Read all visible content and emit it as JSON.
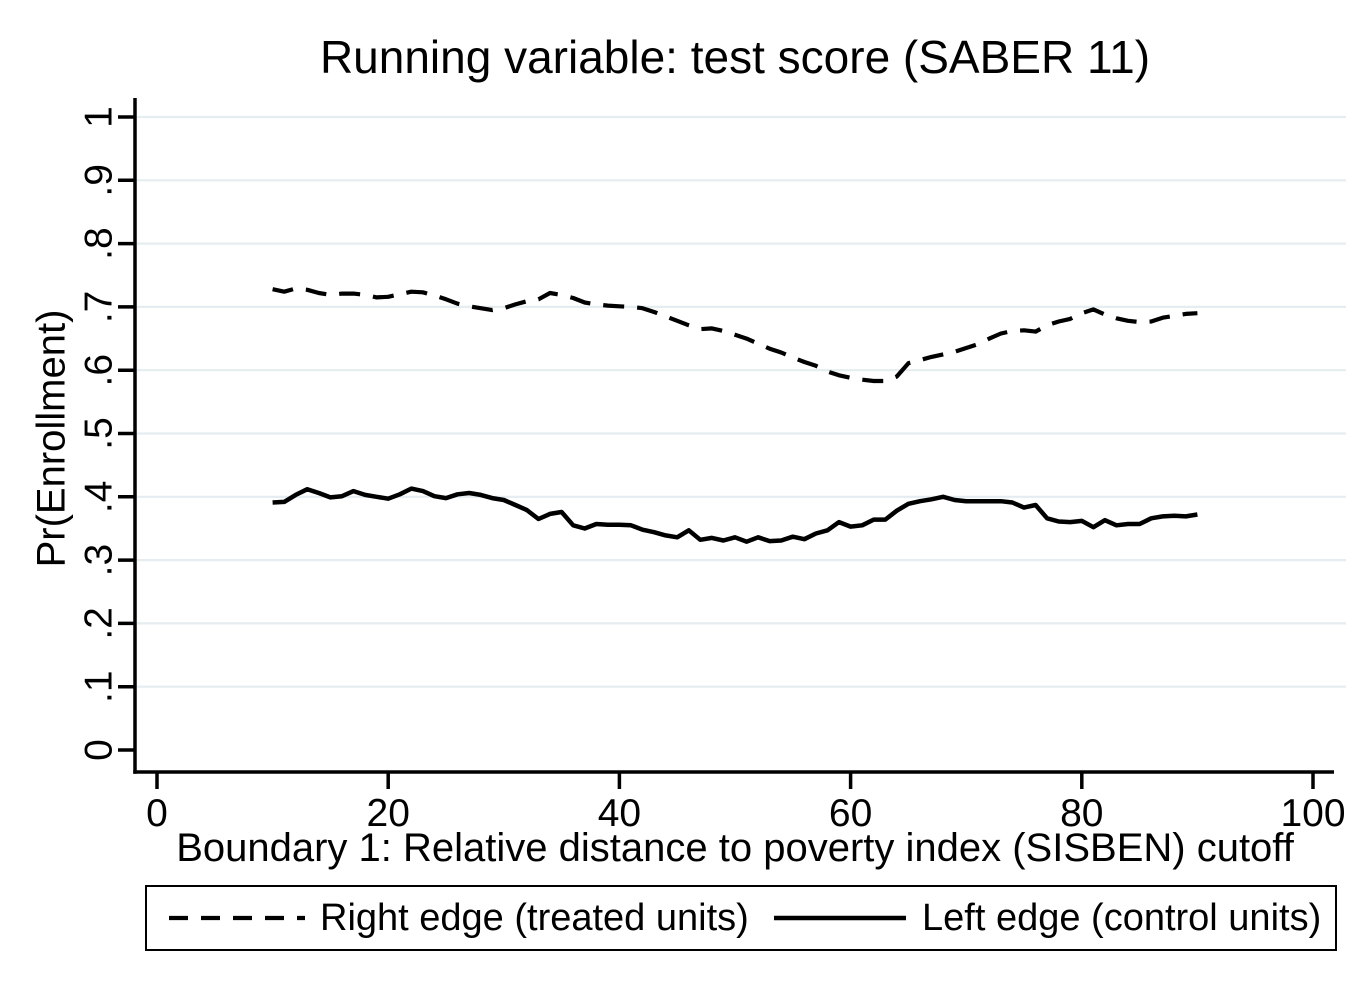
{
  "title": "Running variable: test score (SABER 11)",
  "colors": {
    "line": "#000000",
    "grid": "#e5edf1",
    "background": "#ffffff"
  },
  "chart_data": {
    "type": "line",
    "title": "Running variable: test score (SABER 11)",
    "xlabel": "Boundary 1: Relative distance to poverty index (SISBEN) cutoff",
    "ylabel": "Pr(Enrollment)",
    "xlim": [
      0,
      100
    ],
    "ylim": [
      0,
      1
    ],
    "x_ticks": [
      0,
      20,
      40,
      60,
      80,
      100
    ],
    "x_tick_labels": [
      "0",
      "20",
      "40",
      "60",
      "80",
      "100"
    ],
    "y_ticks": [
      0,
      0.1,
      0.2,
      0.3,
      0.4,
      0.5,
      0.6,
      0.7,
      0.8,
      0.9,
      1
    ],
    "y_tick_labels": [
      "0",
      ".1",
      ".2",
      ".3",
      ".4",
      ".5",
      ".6",
      ".7",
      ".8",
      ".9",
      "1"
    ],
    "grid": "horizontal",
    "legend_position": "bottom",
    "x": [
      10,
      11,
      12,
      13,
      14,
      15,
      16,
      17,
      18,
      19,
      20,
      21,
      22,
      23,
      24,
      25,
      26,
      27,
      28,
      29,
      30,
      31,
      32,
      33,
      34,
      35,
      36,
      37,
      38,
      39,
      40,
      41,
      42,
      43,
      44,
      45,
      46,
      47,
      48,
      49,
      50,
      51,
      52,
      53,
      54,
      55,
      56,
      57,
      58,
      59,
      60,
      61,
      62,
      63,
      64,
      65,
      66,
      67,
      68,
      69,
      70,
      71,
      72,
      73,
      74,
      75,
      76,
      77,
      78,
      79,
      80,
      81,
      82,
      83,
      84,
      85,
      86,
      87,
      88,
      89,
      90
    ],
    "series": [
      {
        "name": "Right edge (treated units)",
        "style": "dashed",
        "values": [
          0.728,
          0.724,
          0.729,
          0.727,
          0.722,
          0.719,
          0.721,
          0.721,
          0.719,
          0.715,
          0.716,
          0.72,
          0.724,
          0.723,
          0.718,
          0.712,
          0.705,
          0.701,
          0.698,
          0.695,
          0.698,
          0.704,
          0.709,
          0.712,
          0.722,
          0.719,
          0.714,
          0.707,
          0.704,
          0.702,
          0.701,
          0.7,
          0.698,
          0.692,
          0.685,
          0.678,
          0.671,
          0.665,
          0.666,
          0.662,
          0.656,
          0.65,
          0.642,
          0.634,
          0.628,
          0.62,
          0.613,
          0.607,
          0.598,
          0.592,
          0.588,
          0.585,
          0.583,
          0.583,
          0.59,
          0.611,
          0.616,
          0.621,
          0.625,
          0.629,
          0.635,
          0.641,
          0.65,
          0.658,
          0.662,
          0.663,
          0.661,
          0.671,
          0.677,
          0.681,
          0.69,
          0.696,
          0.688,
          0.682,
          0.678,
          0.676,
          0.677,
          0.683,
          0.686,
          0.689,
          0.69
        ]
      },
      {
        "name": "Left edge (control units)",
        "style": "solid",
        "values": [
          0.391,
          0.392,
          0.403,
          0.412,
          0.406,
          0.399,
          0.401,
          0.409,
          0.403,
          0.4,
          0.397,
          0.404,
          0.413,
          0.409,
          0.401,
          0.398,
          0.404,
          0.406,
          0.403,
          0.398,
          0.395,
          0.387,
          0.379,
          0.365,
          0.373,
          0.376,
          0.355,
          0.35,
          0.357,
          0.356,
          0.356,
          0.355,
          0.348,
          0.344,
          0.339,
          0.336,
          0.347,
          0.332,
          0.335,
          0.331,
          0.336,
          0.329,
          0.336,
          0.33,
          0.331,
          0.337,
          0.333,
          0.342,
          0.347,
          0.36,
          0.353,
          0.355,
          0.364,
          0.364,
          0.378,
          0.389,
          0.393,
          0.396,
          0.4,
          0.395,
          0.393,
          0.393,
          0.393,
          0.393,
          0.391,
          0.383,
          0.387,
          0.366,
          0.361,
          0.36,
          0.362,
          0.352,
          0.363,
          0.355,
          0.357,
          0.357,
          0.366,
          0.369,
          0.37,
          0.369,
          0.372
        ]
      }
    ]
  },
  "legend": {
    "treated_label": "Right edge (treated units)",
    "control_label": "Left edge (control units)"
  }
}
